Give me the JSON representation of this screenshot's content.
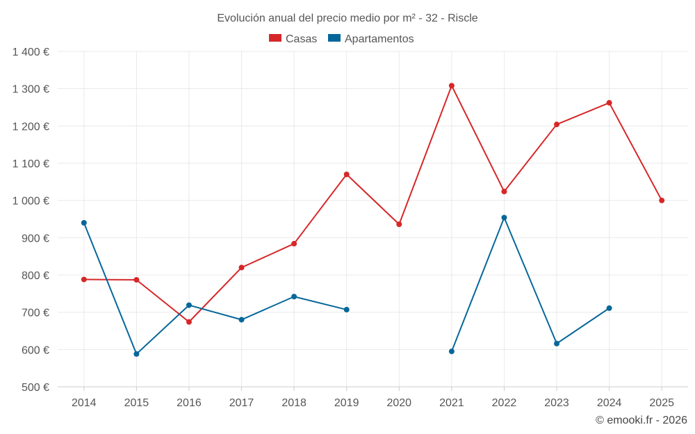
{
  "chart_data": {
    "type": "line",
    "title": "Evolución anual del precio medio por m² - 32 - Riscle",
    "categories": [
      "2014",
      "2015",
      "2016",
      "2017",
      "2018",
      "2019",
      "2020",
      "2021",
      "2022",
      "2023",
      "2024",
      "2025"
    ],
    "series": [
      {
        "name": "Casas",
        "color": "#d62728",
        "values": [
          788,
          787,
          674,
          820,
          884,
          1070,
          936,
          1308,
          1024,
          1204,
          1262,
          1000
        ]
      },
      {
        "name": "Apartamentos",
        "color": "#05679a",
        "values": [
          940,
          588,
          719,
          680,
          742,
          707,
          null,
          595,
          954,
          616,
          711,
          null
        ]
      }
    ],
    "yticks": [
      "500 €",
      "600 €",
      "700 €",
      "800 €",
      "900 €",
      "1 000 €",
      "1 100 €",
      "1 200 €",
      "1 300 €",
      "1 400 €"
    ],
    "ylim": [
      500,
      1400
    ],
    "xlabel": "",
    "ylabel": "",
    "legend_position": "top-center",
    "grid": true
  },
  "credit": "© emooki.fr - 2026"
}
